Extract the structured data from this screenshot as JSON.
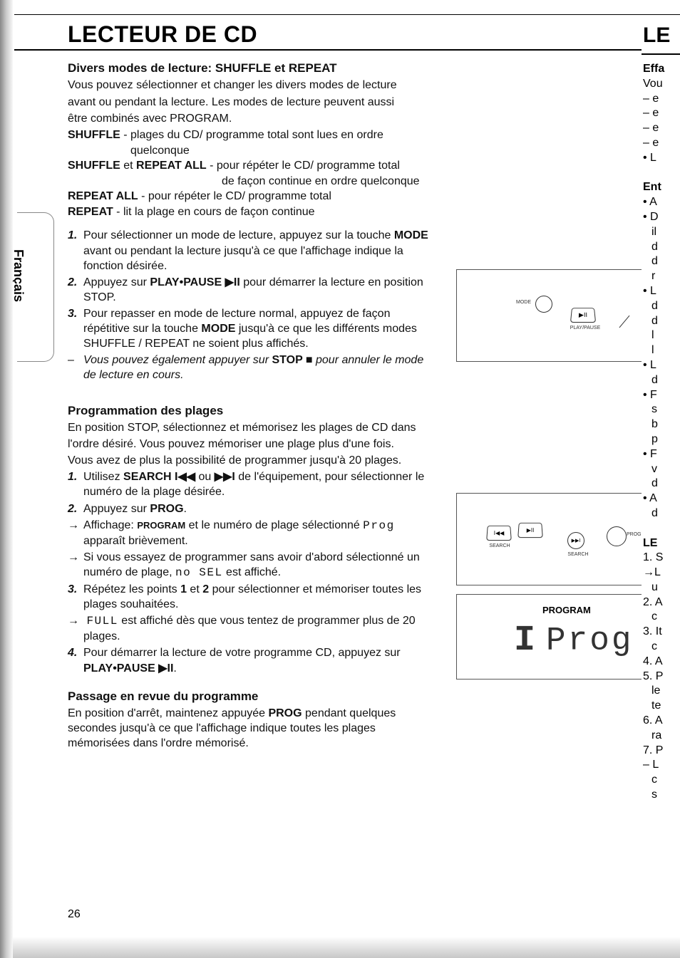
{
  "page": {
    "title": "LECTEUR DE CD",
    "sidebar_label": "Français",
    "page_number": "26"
  },
  "section1": {
    "heading": "Divers modes de lecture: SHUFFLE et REPEAT",
    "intro1": "Vous pouvez sélectionner et changer les divers modes de lecture",
    "intro2": "avant ou pendant la lecture. Les modes de lecture peuvent aussi",
    "intro3": "être combinés avec PROGRAM.",
    "def1_term": "SHUFFLE",
    "def1_body": " - plages du CD/ programme total sont lues en ordre",
    "def1_cont": "quelconque",
    "def2_term1": "SHUFFLE",
    "def2_mid": " et ",
    "def2_term2": "REPEAT ALL",
    "def2_body": " - pour répéter le CD/ programme total",
    "def2_cont": "de façon continue en ordre quelconque",
    "def3_term": "REPEAT ALL",
    "def3_body": " - pour répéter le CD/ programme total",
    "def4_term": "REPEAT",
    "def4_body": " - lit la plage en cours de façon continue",
    "step1_a": "Pour sélectionner un mode de lecture, appuyez sur la touche ",
    "step1_mode": "MODE",
    "step1_b": " avant ou pendant la lecture jusqu'à ce que l'affichage indique la fonction désirée.",
    "step2_a": "Appuyez sur ",
    "step2_pp": "PLAY•PAUSE ▶II",
    "step2_b": " pour démarrer la lecture en position STOP.",
    "step3_a": "Pour repasser en mode de lecture normal, appuyez de façon répétitive sur la touche ",
    "step3_mode": "MODE",
    "step3_b": " jusqu'à ce que les différents modes SHUFFLE / REPEAT ne soient plus affichés.",
    "note_a": "Vous pouvez également appuyer sur ",
    "note_stop": "STOP ■",
    "note_b": " pour annuler le mode de lecture en cours."
  },
  "section2": {
    "heading": "Programmation des plages",
    "intro1": "En position STOP, sélectionnez et mémorisez les plages de CD dans",
    "intro2": "l'ordre désiré. Vous pouvez mémoriser une plage plus d'une fois.",
    "intro3": "Vous avez de plus la possibilité de programmer jusqu'à 20 plages.",
    "step1_a": "Utilisez ",
    "step1_search": "SEARCH I◀◀",
    "step1_ou": " ou ",
    "step1_fwd": "▶▶I",
    "step1_b": " de l'équipement, pour sélectionner le numéro de la plage désirée.",
    "step2_a": "Appuyez sur ",
    "step2_prog": "PROG",
    "step2_b": ".",
    "arrow1_a": "Affichage: ",
    "arrow1_program": "PROGRAM",
    "arrow1_b": " et le numéro de plage sélectionné  ",
    "arrow1_seg": "Prog",
    "arrow1_c": " apparaît brièvement.",
    "arrow2_a": "Si vous essayez de programmer sans avoir d'abord sélectionné un numéro de plage, ",
    "arrow2_seg": "no SEL",
    "arrow2_b": "  est affiché.",
    "step3_a": "Répétez les points ",
    "step3_1": "1",
    "step3_et": " et ",
    "step3_2": "2",
    "step3_b": " pour sélectionner et mémoriser toutes les plages souhaitées.",
    "arrow3_seg": "FULL",
    "arrow3_b": "  est affiché dès que vous tentez de programmer plus de 20 plages.",
    "step4_a": "Pour démarrer la lecture de votre programme CD, appuyez sur ",
    "step4_pp": "PLAY•PAUSE ▶II",
    "step4_b": "."
  },
  "section3": {
    "heading": "Passage en revue du programme",
    "body_a": "En position d'arrêt, maintenez appuyée ",
    "body_prog": "PROG",
    "body_b": " pendant quelques secondes jusqu'à ce que l'affichage indique toutes les plages mémorisées dans l'ordre mémorisé."
  },
  "figures": {
    "fig1": {
      "mode_label": "MODE",
      "playpause_label": "PLAY/PAUSE",
      "playpause_glyph": "▶II"
    },
    "fig2": {
      "search_label": "SEARCH",
      "rew_glyph": "I◀◀",
      "playpause_glyph": "▶II",
      "fwd_glyph": "▶▶I",
      "prog_label": "PROG"
    },
    "fig3": {
      "program_label": "PROGRAM",
      "display": "Prog"
    }
  },
  "cutoff": {
    "big": "LE",
    "rows": [
      "Effa",
      "Vou",
      "– e",
      "– e",
      "– e",
      "– e",
      "• L",
      "",
      "Ent",
      "• A",
      "• D",
      "  il",
      "  d",
      "  d",
      "  r",
      "• L",
      "  d",
      "  d",
      "  l",
      "  l",
      "• L",
      "  d",
      "• F",
      "  s",
      "  b",
      "  p",
      "• F",
      "  v",
      "  d",
      "• A",
      "  d",
      "",
      "LE",
      "1. S",
      "→L",
      "  u",
      "2. A",
      "  c",
      "3. It",
      "  c",
      "4. A",
      "5. P",
      "  le",
      "  te",
      "6. A",
      "  ra",
      "7. P",
      "– L",
      "  c",
      "  s"
    ]
  },
  "glyphs": {
    "arrow": "→",
    "dash": "–",
    "play": "▶",
    "pause": "II",
    "stop": "■",
    "rew": "I◀◀",
    "fwd": "▶▶I"
  }
}
